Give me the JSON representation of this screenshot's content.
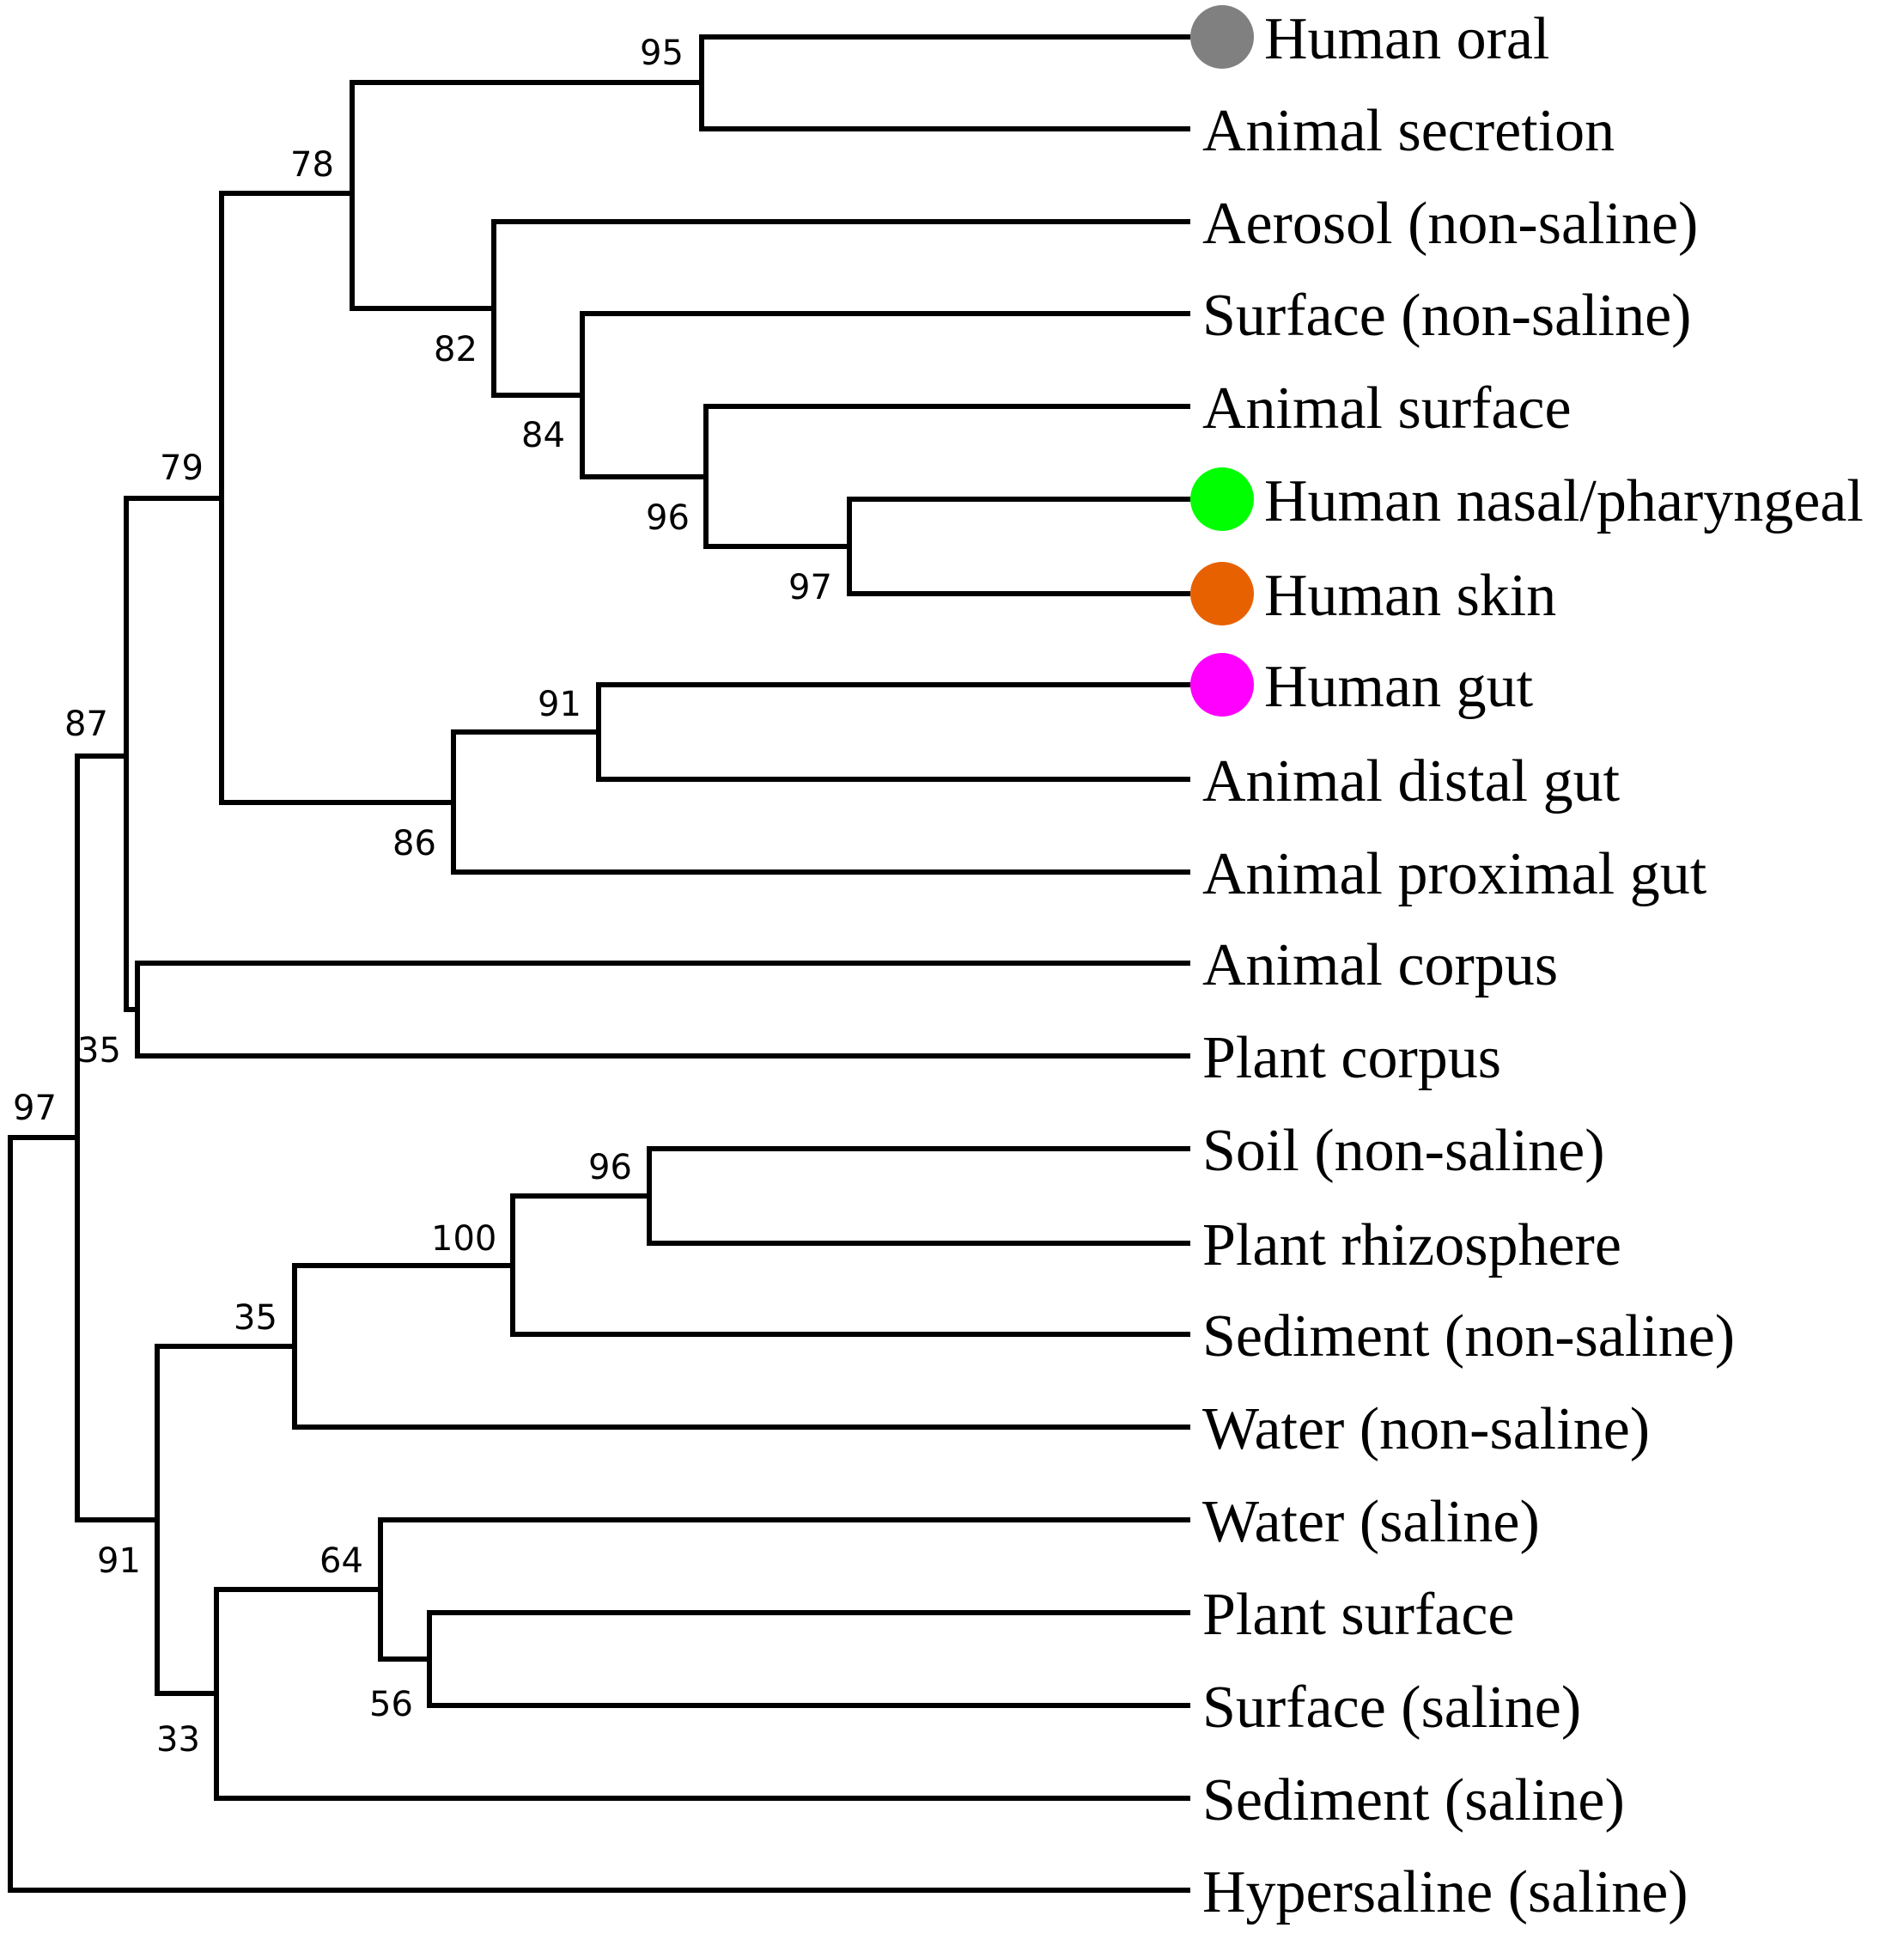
{
  "tree": {
    "leaves": [
      {
        "id": "human-oral",
        "label": "Human oral",
        "marker": "#808080"
      },
      {
        "id": "animal-secretion",
        "label": "Animal secretion"
      },
      {
        "id": "aerosol-non-saline",
        "label": "Aerosol (non-saline)"
      },
      {
        "id": "surface-non-saline",
        "label": "Surface (non-saline)"
      },
      {
        "id": "animal-surface",
        "label": "Animal surface"
      },
      {
        "id": "human-nasal-pharyngeal",
        "label": "Human nasal/pharyngeal",
        "marker": "#00ff00"
      },
      {
        "id": "human-skin",
        "label": "Human skin",
        "marker": "#e86100"
      },
      {
        "id": "human-gut",
        "label": "Human gut",
        "marker": "#ff00ff"
      },
      {
        "id": "animal-distal-gut",
        "label": "Animal distal gut"
      },
      {
        "id": "animal-proximal-gut",
        "label": "Animal proximal gut"
      },
      {
        "id": "animal-corpus",
        "label": "Animal corpus"
      },
      {
        "id": "plant-corpus",
        "label": "Plant corpus"
      },
      {
        "id": "soil-non-saline",
        "label": "Soil (non-saline)"
      },
      {
        "id": "plant-rhizosphere",
        "label": "Plant rhizosphere"
      },
      {
        "id": "sediment-non-saline",
        "label": "Sediment (non-saline)"
      },
      {
        "id": "water-non-saline",
        "label": "Water (non-saline)"
      },
      {
        "id": "water-saline",
        "label": "Water (saline)"
      },
      {
        "id": "plant-surface",
        "label": "Plant surface"
      },
      {
        "id": "surface-saline",
        "label": "Surface (saline)"
      },
      {
        "id": "sediment-saline",
        "label": "Sediment (saline)"
      },
      {
        "id": "hypersaline-saline",
        "label": "Hypersaline (saline)"
      }
    ],
    "support_values": {
      "n95": "95",
      "n78": "78",
      "n82": "82",
      "n84": "84",
      "n79": "79",
      "n96a": "96",
      "n97a": "97",
      "n91a": "91",
      "n87": "87",
      "n86": "86",
      "n35a": "35",
      "n97b": "97",
      "n96b": "96",
      "n100": "100",
      "n35b": "35",
      "n64": "64",
      "n91b": "91",
      "n56": "56",
      "n33": "33"
    }
  }
}
